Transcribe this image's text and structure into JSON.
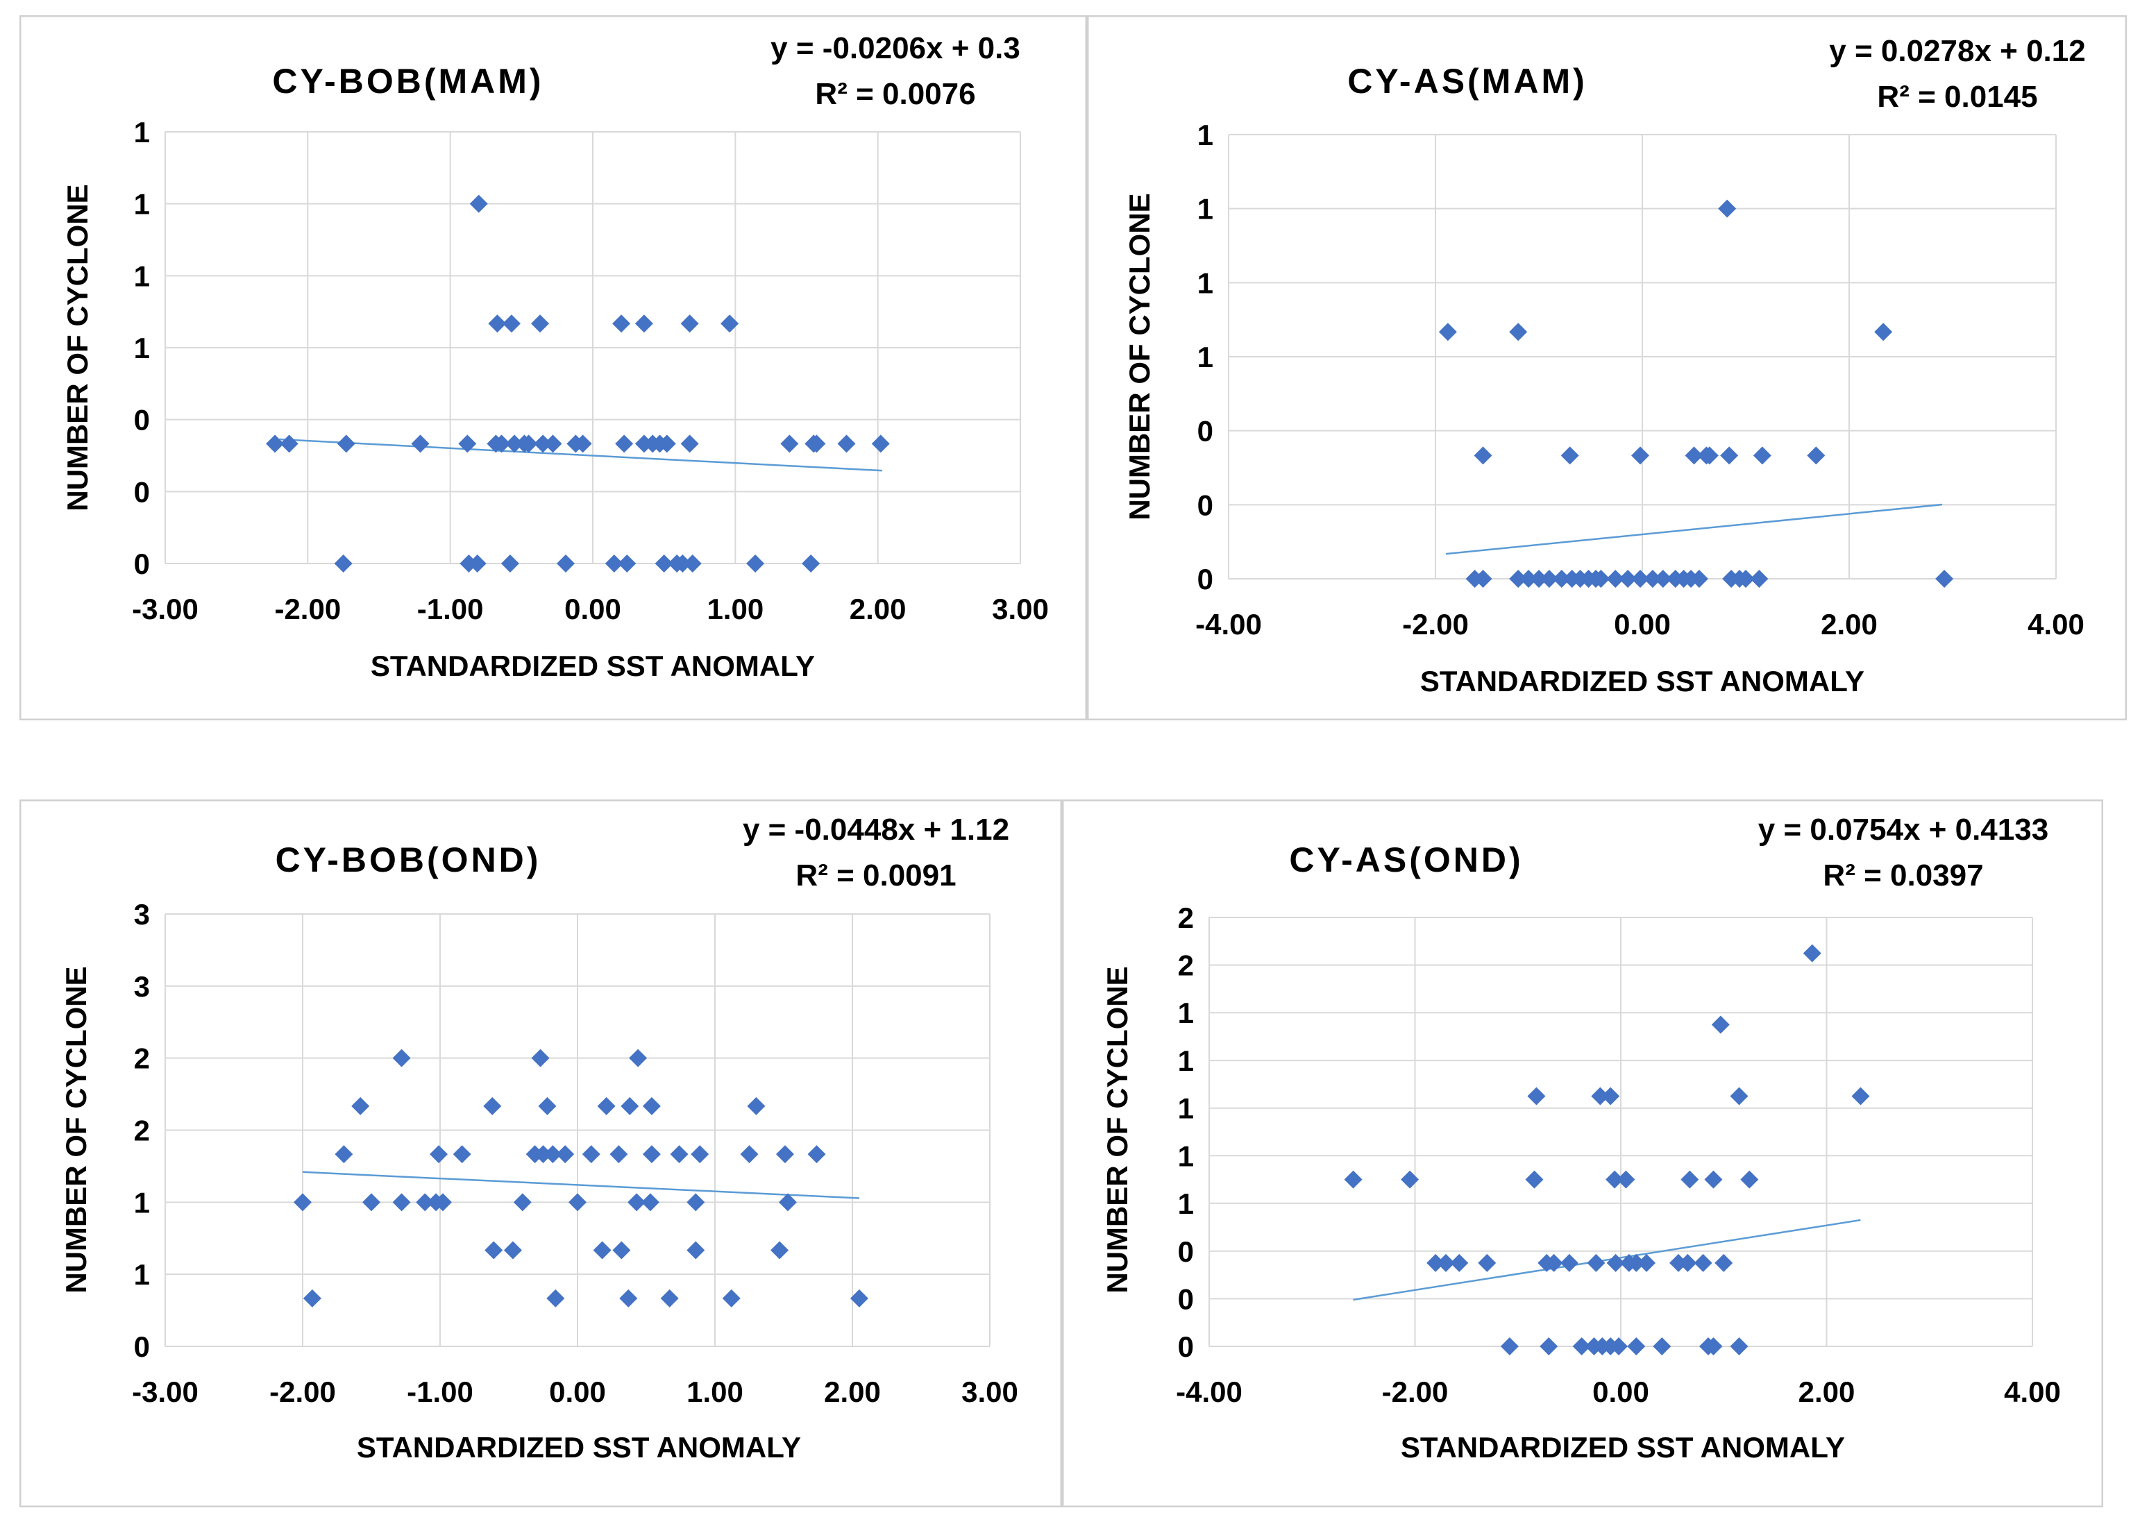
{
  "colors": {
    "marker": "#4472C4",
    "trendline": "#5B9BD5",
    "grid": "#D9D9D9",
    "border": "#D0D0D0",
    "text": "#000000"
  },
  "chart_data": [
    {
      "type": "scatter",
      "title": "CY-BOB(MAM)",
      "xlabel": "STANDARDIZED SST ANOMALY",
      "ylabel": "NUMBER OF CYCLONE",
      "equation": "y = -0.0206x + 0.3",
      "r_squared": "R² = 0.0076",
      "xlim": [
        -3,
        3
      ],
      "ylim": [
        0,
        1.2
      ],
      "xticks": [
        -3,
        -2,
        -1,
        0,
        1,
        2,
        3
      ],
      "xtick_labels": [
        "-3.00",
        "-2.00",
        "-1.00",
        "0.00",
        "1.00",
        "2.00",
        "3.00"
      ],
      "yticks": [
        0,
        0.2,
        0.4,
        0.6,
        0.8,
        1.0,
        1.2
      ],
      "ytick_labels": [
        "0",
        "0",
        "0",
        "1",
        "1",
        "1",
        "1"
      ],
      "slope": -0.0206,
      "intercept": 0.3,
      "trend_x": [
        -2.2,
        2.03
      ],
      "points": [
        [
          -2.23,
          0.333
        ],
        [
          -2.13,
          0.333
        ],
        [
          -1.73,
          0.333
        ],
        [
          -1.21,
          0.333
        ],
        [
          -0.88,
          0.333
        ],
        [
          -0.68,
          0.333
        ],
        [
          -0.64,
          0.333
        ],
        [
          -0.55,
          0.333
        ],
        [
          -0.48,
          0.333
        ],
        [
          -0.45,
          0.333
        ],
        [
          -0.35,
          0.333
        ],
        [
          -0.28,
          0.333
        ],
        [
          -0.12,
          0.333
        ],
        [
          -0.07,
          0.333
        ],
        [
          0.22,
          0.333
        ],
        [
          0.36,
          0.333
        ],
        [
          0.42,
          0.333
        ],
        [
          0.47,
          0.333
        ],
        [
          0.52,
          0.333
        ],
        [
          0.68,
          0.333
        ],
        [
          1.38,
          0.333
        ],
        [
          1.55,
          0.333
        ],
        [
          1.57,
          0.333
        ],
        [
          1.78,
          0.333
        ],
        [
          2.02,
          0.333
        ],
        [
          -0.67,
          0.667
        ],
        [
          -0.57,
          0.667
        ],
        [
          -0.37,
          0.667
        ],
        [
          0.2,
          0.667
        ],
        [
          0.36,
          0.667
        ],
        [
          0.68,
          0.667
        ],
        [
          0.96,
          0.667
        ],
        [
          -0.8,
          1.0
        ],
        [
          -1.75,
          0
        ],
        [
          -0.87,
          0
        ],
        [
          -0.81,
          0
        ],
        [
          -0.58,
          0
        ],
        [
          -0.19,
          0
        ],
        [
          0.15,
          0
        ],
        [
          0.24,
          0
        ],
        [
          0.5,
          0
        ],
        [
          0.59,
          0
        ],
        [
          0.63,
          0
        ],
        [
          0.7,
          0
        ],
        [
          1.14,
          0
        ],
        [
          1.53,
          0
        ]
      ]
    },
    {
      "type": "scatter",
      "title": "CY-AS(MAM)",
      "xlabel": "STANDARDIZED SST ANOMALY",
      "ylabel": "NUMBER OF CYCLONE",
      "equation": "y = 0.0278x + 0.12",
      "r_squared": "R² = 0.0145",
      "xlim": [
        -4,
        4
      ],
      "ylim": [
        0,
        1.2
      ],
      "xticks": [
        -4,
        -2,
        0,
        2,
        4
      ],
      "xtick_labels": [
        "-4.00",
        "-2.00",
        "0.00",
        "2.00",
        "4.00"
      ],
      "yticks": [
        0,
        0.2,
        0.4,
        0.6,
        0.8,
        1.0,
        1.2
      ],
      "ytick_labels": [
        "0",
        "0",
        "0",
        "1",
        "1",
        "1",
        "1"
      ],
      "slope": 0.0278,
      "intercept": 0.12,
      "trend_x": [
        -1.9,
        2.9
      ],
      "points": [
        [
          0.82,
          1.0
        ],
        [
          -1.88,
          0.667
        ],
        [
          -1.2,
          0.667
        ],
        [
          2.33,
          0.667
        ],
        [
          -1.54,
          0.333
        ],
        [
          -0.7,
          0.333
        ],
        [
          -0.02,
          0.333
        ],
        [
          0.5,
          0.333
        ],
        [
          0.62,
          0.333
        ],
        [
          0.65,
          0.333
        ],
        [
          0.84,
          0.333
        ],
        [
          1.16,
          0.333
        ],
        [
          1.68,
          0.333
        ],
        [
          -1.62,
          0
        ],
        [
          -1.54,
          0
        ],
        [
          -1.2,
          0
        ],
        [
          -1.1,
          0
        ],
        [
          -1.0,
          0
        ],
        [
          -0.9,
          0
        ],
        [
          -0.78,
          0
        ],
        [
          -0.68,
          0
        ],
        [
          -0.6,
          0
        ],
        [
          -0.52,
          0
        ],
        [
          -0.45,
          0
        ],
        [
          -0.4,
          0
        ],
        [
          -0.26,
          0
        ],
        [
          -0.14,
          0
        ],
        [
          -0.02,
          0
        ],
        [
          0.1,
          0
        ],
        [
          0.2,
          0
        ],
        [
          0.32,
          0
        ],
        [
          0.4,
          0
        ],
        [
          0.47,
          0
        ],
        [
          0.55,
          0
        ],
        [
          0.86,
          0
        ],
        [
          0.94,
          0
        ],
        [
          1.0,
          0
        ],
        [
          1.13,
          0
        ],
        [
          2.92,
          0
        ]
      ]
    },
    {
      "type": "scatter",
      "title": "CY-BOB(OND)",
      "xlabel": "STANDARDIZED SST ANOMALY",
      "ylabel": "NUMBER OF CYCLONE",
      "equation": "y = -0.0448x + 1.12",
      "r_squared": "R² = 0.0091",
      "xlim": [
        -3,
        3
      ],
      "ylim": [
        0,
        3
      ],
      "xticks": [
        -3,
        -2,
        -1,
        0,
        1,
        2,
        3
      ],
      "xtick_labels": [
        "-3.00",
        "-2.00",
        "-1.00",
        "0.00",
        "1.00",
        "2.00",
        "3.00"
      ],
      "yticks": [
        0,
        0.5,
        1.0,
        1.5,
        2.0,
        2.5,
        3.0
      ],
      "ytick_labels": [
        "0",
        "1",
        "1",
        "2",
        "2",
        "3",
        "3"
      ],
      "slope": -0.0448,
      "intercept": 1.12,
      "trend_x": [
        -2.0,
        2.05
      ],
      "points": [
        [
          -1.28,
          2.0
        ],
        [
          -0.27,
          2.0
        ],
        [
          0.44,
          2.0
        ],
        [
          -1.58,
          1.667
        ],
        [
          -0.62,
          1.667
        ],
        [
          -0.22,
          1.667
        ],
        [
          0.21,
          1.667
        ],
        [
          0.38,
          1.667
        ],
        [
          0.54,
          1.667
        ],
        [
          1.3,
          1.667
        ],
        [
          -1.7,
          1.333
        ],
        [
          -1.01,
          1.333
        ],
        [
          -0.84,
          1.333
        ],
        [
          -0.31,
          1.333
        ],
        [
          -0.25,
          1.333
        ],
        [
          -0.18,
          1.333
        ],
        [
          -0.09,
          1.333
        ],
        [
          0.1,
          1.333
        ],
        [
          0.3,
          1.333
        ],
        [
          0.54,
          1.333
        ],
        [
          0.74,
          1.333
        ],
        [
          0.89,
          1.333
        ],
        [
          1.25,
          1.333
        ],
        [
          1.51,
          1.333
        ],
        [
          1.74,
          1.333
        ],
        [
          -2.0,
          1.0
        ],
        [
          -1.5,
          1.0
        ],
        [
          -1.28,
          1.0
        ],
        [
          -1.11,
          1.0
        ],
        [
          -1.03,
          1.0
        ],
        [
          -0.98,
          1.0
        ],
        [
          -0.4,
          1.0
        ],
        [
          0.0,
          1.0
        ],
        [
          0.43,
          1.0
        ],
        [
          0.53,
          1.0
        ],
        [
          0.86,
          1.0
        ],
        [
          1.53,
          1.0
        ],
        [
          -0.61,
          0.667
        ],
        [
          -0.47,
          0.667
        ],
        [
          0.18,
          0.667
        ],
        [
          0.32,
          0.667
        ],
        [
          0.86,
          0.667
        ],
        [
          1.47,
          0.667
        ],
        [
          -1.93,
          0.333
        ],
        [
          -0.16,
          0.333
        ],
        [
          0.37,
          0.333
        ],
        [
          0.67,
          0.333
        ],
        [
          1.12,
          0.333
        ],
        [
          2.05,
          0.333
        ]
      ]
    },
    {
      "type": "scatter",
      "title": "CY-AS(OND)",
      "xlabel": "STANDARDIZED SST ANOMALY",
      "ylabel": "NUMBER OF CYCLONE",
      "equation": "y = 0.0754x + 0.4133",
      "r_squared": "R² = 0.0397",
      "xlim": [
        -4,
        4
      ],
      "ylim": [
        0,
        2
      ],
      "xticks": [
        -4,
        -2,
        0,
        2,
        4
      ],
      "xtick_labels": [
        "-4.00",
        "-2.00",
        "0.00",
        "2.00",
        "4.00"
      ],
      "yticks": [
        0,
        0.222,
        0.444,
        0.667,
        0.889,
        1.111,
        1.333,
        1.556,
        1.778,
        2.0
      ],
      "ytick_labels": [
        "0",
        "0",
        "0",
        "1",
        "1",
        "1",
        "1",
        "1",
        "2",
        "2"
      ],
      "slope": 0.0754,
      "intercept": 0.4133,
      "trend_x": [
        -2.6,
        2.33
      ],
      "points": [
        [
          1.86,
          1.833
        ],
        [
          0.97,
          1.5
        ],
        [
          -0.82,
          1.1667
        ],
        [
          -0.2,
          1.1667
        ],
        [
          -0.1,
          1.1667
        ],
        [
          1.15,
          1.1667
        ],
        [
          2.33,
          1.1667
        ],
        [
          -2.6,
          0.7778
        ],
        [
          -2.05,
          0.7778
        ],
        [
          -0.84,
          0.7778
        ],
        [
          -0.06,
          0.7778
        ],
        [
          0.05,
          0.7778
        ],
        [
          0.67,
          0.7778
        ],
        [
          0.9,
          0.7778
        ],
        [
          1.25,
          0.7778
        ],
        [
          -1.8,
          0.3889
        ],
        [
          -1.7,
          0.3889
        ],
        [
          -1.57,
          0.3889
        ],
        [
          -1.3,
          0.3889
        ],
        [
          -0.72,
          0.3889
        ],
        [
          -0.65,
          0.3889
        ],
        [
          -0.5,
          0.3889
        ],
        [
          -0.24,
          0.3889
        ],
        [
          -0.05,
          0.3889
        ],
        [
          0.08,
          0.3889
        ],
        [
          0.15,
          0.3889
        ],
        [
          0.25,
          0.3889
        ],
        [
          0.56,
          0.3889
        ],
        [
          0.65,
          0.3889
        ],
        [
          0.8,
          0.3889
        ],
        [
          1.0,
          0.3889
        ],
        [
          -1.08,
          0
        ],
        [
          -0.7,
          0
        ],
        [
          -0.38,
          0
        ],
        [
          -0.26,
          0
        ],
        [
          -0.18,
          0
        ],
        [
          -0.1,
          0
        ],
        [
          -0.02,
          0
        ],
        [
          0.15,
          0
        ],
        [
          0.4,
          0
        ],
        [
          0.85,
          0
        ],
        [
          0.9,
          0
        ],
        [
          1.15,
          0
        ]
      ]
    }
  ]
}
